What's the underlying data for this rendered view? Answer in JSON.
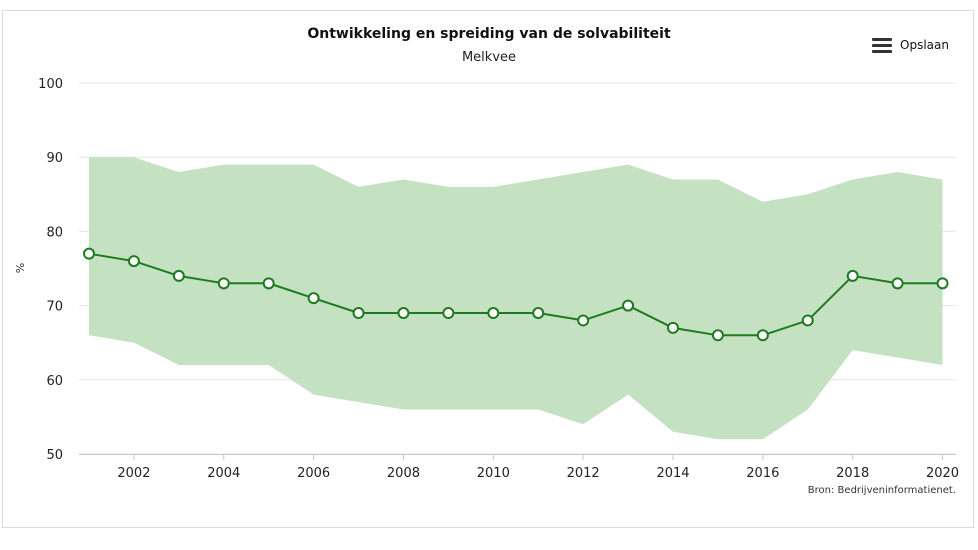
{
  "header": {
    "title": "Ontwikkeling en spreiding van de solvabiliteit",
    "subtitle": "Melkvee",
    "menu_label": "Opslaan",
    "menu_icon": "hamburger-menu-icon"
  },
  "source_text": "Bron: Bedrijveninformatienet.",
  "colors": {
    "line": "#1f7a1f",
    "band": "#c4e2c2",
    "grid": "#e6e6e6",
    "marker_fill": "#ffffff"
  },
  "chart_data": {
    "type": "line",
    "title": "Ontwikkeling en spreiding van de solvabiliteit",
    "subtitle": "Melkvee",
    "xlabel": "",
    "ylabel": "%",
    "x": [
      2001,
      2002,
      2003,
      2004,
      2005,
      2006,
      2007,
      2008,
      2009,
      2010,
      2011,
      2012,
      2013,
      2014,
      2015,
      2016,
      2017,
      2018,
      2019,
      2020
    ],
    "xlim": [
      2001,
      2020.3
    ],
    "ylim": [
      50,
      100
    ],
    "x_ticks": [
      "2002",
      "2004",
      "2006",
      "2008",
      "2010",
      "2012",
      "2014",
      "2016",
      "2018",
      "2020"
    ],
    "y_ticks": [
      "50",
      "60",
      "70",
      "80",
      "90",
      "100"
    ],
    "grid": true,
    "series": [
      {
        "values": [
          77,
          76,
          74,
          73,
          73,
          71,
          69,
          69,
          69,
          69,
          69,
          68,
          70,
          67,
          66,
          66,
          68,
          74,
          73,
          73
        ]
      }
    ],
    "range": {
      "upper": [
        90,
        90,
        88,
        89,
        89,
        89,
        86,
        87,
        86,
        86,
        87,
        88,
        89,
        87,
        87,
        84,
        85,
        87,
        88,
        87
      ],
      "lower": [
        66,
        65,
        62,
        62,
        62,
        58,
        57,
        56,
        56,
        56,
        56,
        54,
        58,
        53,
        52,
        52,
        56,
        64,
        63,
        62
      ]
    }
  }
}
